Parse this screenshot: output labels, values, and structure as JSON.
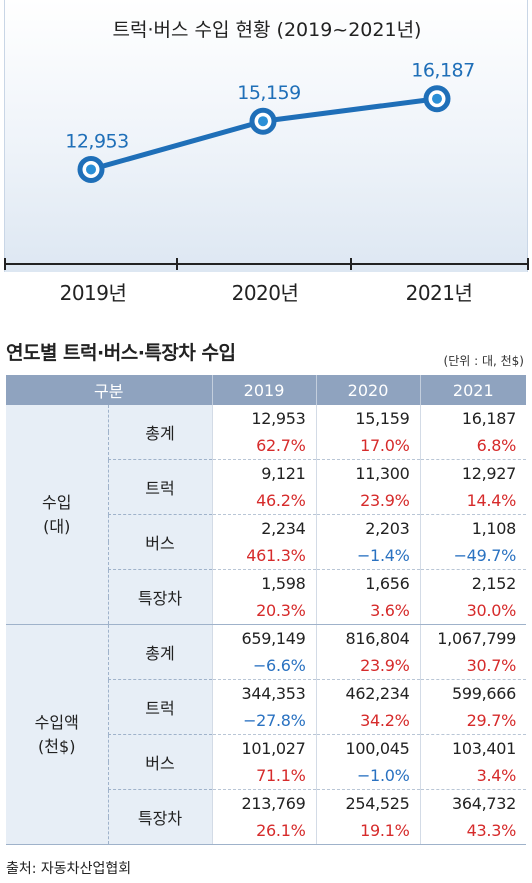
{
  "chart_data": [
    {
      "type": "line",
      "title": "트럭·버스 수입 현황 (2019~2021년)",
      "categories": [
        "2019년",
        "2020년",
        "2021년"
      ],
      "x": [
        2019,
        2020,
        2021
      ],
      "values": [
        12953,
        15159,
        16187
      ],
      "value_labels": [
        "12,953",
        "15,159",
        "16,187"
      ],
      "ylim": [
        9500,
        17500
      ],
      "grid": false,
      "line_color": "#1f6fb8"
    },
    {
      "type": "table",
      "title": "연도별 트럭·버스·특장차 수입",
      "unit_note": "(단위 : 대, 천$)",
      "header": [
        "구분",
        "2019",
        "2020",
        "2021"
      ],
      "groups": [
        {
          "label_line1": "수입",
          "label_line2": "(대)",
          "items": [
            {
              "name": "총계",
              "values": [
                "12,953",
                "15,159",
                "16,187"
              ],
              "changes": [
                "62.7%",
                "17.0%",
                "6.8%"
              ]
            },
            {
              "name": "트럭",
              "values": [
                "9,121",
                "11,300",
                "12,927"
              ],
              "changes": [
                "46.2%",
                "23.9%",
                "14.4%"
              ]
            },
            {
              "name": "버스",
              "values": [
                "2,234",
                "2,203",
                "1,108"
              ],
              "changes": [
                "461.3%",
                "−1.4%",
                "−49.7%"
              ]
            },
            {
              "name": "특장차",
              "values": [
                "1,598",
                "1,656",
                "2,152"
              ],
              "changes": [
                "20.3%",
                "3.6%",
                "30.0%"
              ]
            }
          ]
        },
        {
          "label_line1": "수입액",
          "label_line2": "(천$)",
          "items": [
            {
              "name": "총계",
              "values": [
                "659,149",
                "816,804",
                "1,067,799"
              ],
              "changes": [
                "−6.6%",
                "23.9%",
                "30.7%"
              ]
            },
            {
              "name": "트럭",
              "values": [
                "344,353",
                "462,234",
                "599,666"
              ],
              "changes": [
                "−27.8%",
                "34.2%",
                "29.7%"
              ]
            },
            {
              "name": "버스",
              "values": [
                "101,027",
                "100,045",
                "103,401"
              ],
              "changes": [
                "71.1%",
                "−1.0%",
                "3.4%"
              ]
            },
            {
              "name": "특장차",
              "values": [
                "213,769",
                "254,525",
                "364,732"
              ],
              "changes": [
                "26.1%",
                "19.1%",
                "43.3%"
              ]
            }
          ]
        }
      ]
    }
  ],
  "source": "출처: 자동차산업협회",
  "colors": {
    "positive": "#d62b2b",
    "negative": "#2a72c1",
    "header_bg": "#8fa3bf",
    "label_bg": "#e7eef6"
  }
}
